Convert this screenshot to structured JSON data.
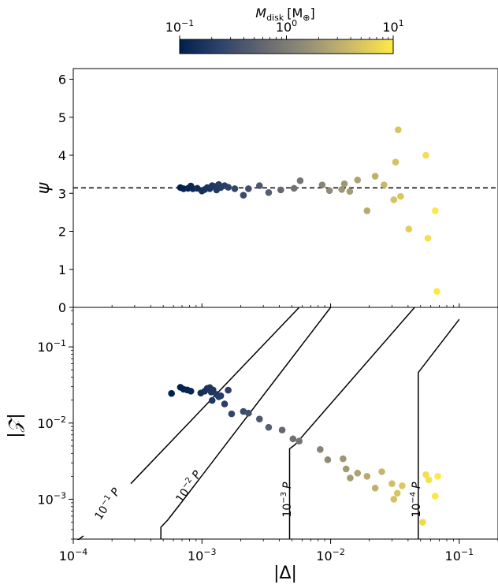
{
  "chart_data": {
    "colorbar": {
      "label": "M_disk [M_⊕]",
      "label_main": "M",
      "label_sub": "disk",
      "label_unit": "[M",
      "label_unit_sub": "⊕",
      "label_close": "]",
      "scale": "log",
      "range": [
        0.1,
        10
      ],
      "ticks": [
        {
          "value": 0.1,
          "base": "10",
          "exp": "−1"
        },
        {
          "value": 1,
          "base": "10",
          "exp": "0"
        },
        {
          "value": 10,
          "base": "10",
          "exp": "1"
        }
      ],
      "colormap": [
        "#00204d",
        "#31446b",
        "#666970",
        "#958f78",
        "#cbba69",
        "#ffe945"
      ]
    },
    "top_panel": {
      "type": "scatter",
      "ylabel": "ψ",
      "ylim": [
        0,
        6.28
      ],
      "yticks": [
        "0",
        "1",
        "2",
        "3",
        "4",
        "5",
        "6"
      ],
      "xscale": "log",
      "xlim": [
        0.0001,
        0.2
      ],
      "hline": {
        "y": 3.1416,
        "style": "dashed"
      },
      "points": [
        [
          0.00068,
          3.15
        ],
        [
          0.00072,
          3.12
        ],
        [
          0.00078,
          3.13
        ],
        [
          0.00082,
          3.19
        ],
        [
          0.00085,
          3.12
        ],
        [
          0.00092,
          3.13
        ],
        [
          0.001,
          3.06
        ],
        [
          0.00105,
          3.1
        ],
        [
          0.0011,
          3.15
        ],
        [
          0.00115,
          3.12
        ],
        [
          0.0012,
          3.2
        ],
        [
          0.00125,
          3.18
        ],
        [
          0.0013,
          3.09
        ],
        [
          0.00135,
          3.23
        ],
        [
          0.0014,
          3.15
        ],
        [
          0.0015,
          3.2
        ],
        [
          0.0016,
          3.16
        ],
        [
          0.0018,
          3.12
        ],
        [
          0.0021,
          2.95
        ],
        [
          0.0023,
          3.12
        ],
        [
          0.0028,
          3.2
        ],
        [
          0.0033,
          3.02
        ],
        [
          0.0041,
          3.09
        ],
        [
          0.0052,
          3.13
        ],
        [
          0.0058,
          3.33
        ],
        [
          0.0086,
          3.22
        ],
        [
          0.0098,
          3.07
        ],
        [
          0.0122,
          3.1
        ],
        [
          0.0128,
          3.25
        ],
        [
          0.0141,
          3.05
        ],
        [
          0.0162,
          3.35
        ],
        [
          0.0192,
          2.54
        ],
        [
          0.0222,
          3.45
        ],
        [
          0.026,
          3.22
        ],
        [
          0.031,
          2.83
        ],
        [
          0.032,
          3.82
        ],
        [
          0.0335,
          4.67
        ],
        [
          0.035,
          2.92
        ],
        [
          0.0405,
          2.06
        ],
        [
          0.055,
          4.0
        ],
        [
          0.057,
          1.82
        ],
        [
          0.065,
          2.54
        ],
        [
          0.067,
          0.42
        ]
      ]
    },
    "bottom_panel": {
      "type": "scatter",
      "xlabel": "|Δ|",
      "ylabel": "|𝒵|",
      "xscale": "log",
      "yscale": "log",
      "xlim": [
        0.0001,
        0.2
      ],
      "ylim": [
        0.0003,
        0.33
      ],
      "xticks": [
        {
          "value": 0.0001,
          "base": "10",
          "exp": "−4"
        },
        {
          "value": 0.001,
          "base": "10",
          "exp": "−3"
        },
        {
          "value": 0.01,
          "base": "10",
          "exp": "−2"
        },
        {
          "value": 0.1,
          "base": "10",
          "exp": "−1"
        }
      ],
      "yticks": [
        {
          "value": 0.001,
          "base": "10",
          "exp": "−3"
        },
        {
          "value": 0.01,
          "base": "10",
          "exp": "−2"
        },
        {
          "value": 0.1,
          "base": "10",
          "exp": "−1"
        }
      ],
      "contours": [
        {
          "label_base": "10",
          "label_exp": "−1",
          "label_unit": "P",
          "x_break": 0.05,
          "points": [
            [
              0.00028,
              0.0016
            ],
            [
              0.0057,
              0.33
            ]
          ]
        },
        {
          "label_base": "10",
          "label_exp": "−2",
          "label_unit": "P",
          "x_break": 0.005,
          "points": [
            [
              0.00048,
              0.0003
            ],
            [
              0.00048,
              0.00043
            ],
            [
              0.00054,
              0.00053
            ],
            [
              0.0007,
              0.00093
            ],
            [
              0.01,
              0.33
            ]
          ]
        },
        {
          "label_base": "10",
          "label_exp": "−3",
          "label_unit": "P",
          "x_break": 0.0005,
          "points": [
            [
              0.0048,
              0.0003
            ],
            [
              0.0048,
              0.0027
            ],
            [
              0.0048,
              0.0046
            ],
            [
              0.0053,
              0.0052
            ],
            [
              0.045,
              0.33
            ]
          ]
        },
        {
          "label_base": "10",
          "label_exp": "−4",
          "label_unit": "P",
          "x_break": 5e-05,
          "points": [
            [
              0.048,
              0.0003
            ],
            [
              0.048,
              0.0025
            ],
            [
              0.048,
              0.046
            ],
            [
              0.1,
              0.23
            ]
          ]
        }
      ],
      "points": [
        [
          0.00058,
          0.0245
        ],
        [
          0.00068,
          0.0295
        ],
        [
          0.00072,
          0.0278
        ],
        [
          0.00077,
          0.0272
        ],
        [
          0.00082,
          0.0262
        ],
        [
          0.00098,
          0.0248
        ],
        [
          0.00105,
          0.0262
        ],
        [
          0.0011,
          0.0285
        ],
        [
          0.00115,
          0.0292
        ],
        [
          0.00118,
          0.0255
        ],
        [
          0.00122,
          0.0272
        ],
        [
          0.0012,
          0.0198
        ],
        [
          0.0013,
          0.0238
        ],
        [
          0.00135,
          0.0222
        ],
        [
          0.0014,
          0.0228
        ],
        [
          0.0015,
          0.0178
        ],
        [
          0.0016,
          0.027
        ],
        [
          0.0017,
          0.0132
        ],
        [
          0.0021,
          0.0142
        ],
        [
          0.0023,
          0.0135
        ],
        [
          0.0028,
          0.0113
        ],
        [
          0.0033,
          0.0088
        ],
        [
          0.0042,
          0.0081
        ],
        [
          0.0051,
          0.0062
        ],
        [
          0.0057,
          0.0058
        ],
        [
          0.0083,
          0.0045
        ],
        [
          0.0095,
          0.0033
        ],
        [
          0.0125,
          0.0034
        ],
        [
          0.0132,
          0.0025
        ],
        [
          0.0142,
          0.0019
        ],
        [
          0.0162,
          0.0022
        ],
        [
          0.0192,
          0.002
        ],
        [
          0.0222,
          0.0014
        ],
        [
          0.025,
          0.0023
        ],
        [
          0.03,
          0.0016
        ],
        [
          0.031,
          0.001
        ],
        [
          0.033,
          0.0012
        ],
        [
          0.036,
          0.0015
        ],
        [
          0.052,
          0.0005
        ],
        [
          0.055,
          0.0021
        ],
        [
          0.058,
          0.0018
        ],
        [
          0.065,
          0.0011
        ],
        [
          0.068,
          0.002
        ]
      ]
    }
  }
}
